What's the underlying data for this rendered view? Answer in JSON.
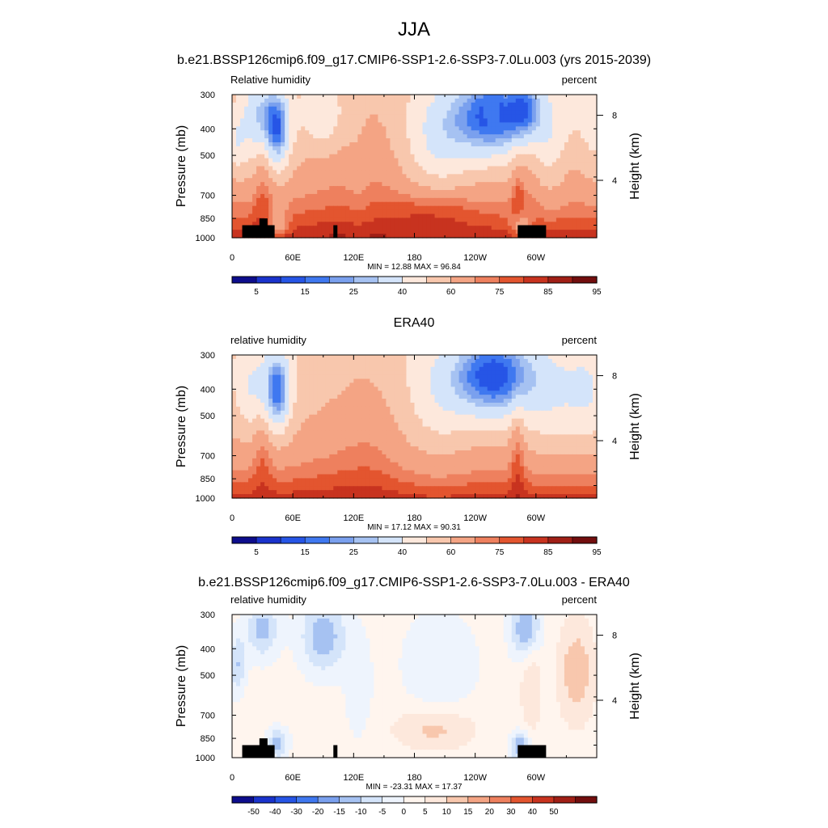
{
  "figure": {
    "title": "JJA",
    "subtitle": "b.e21.BSSP126cmip6.f09_g17.CMIP6-SSP1-2.6-SSP3-7.0Lu.003 (yrs 2015-2039)"
  },
  "colors": {
    "abs_scale": [
      "#0d0d8c",
      "#1a33cc",
      "#2655e6",
      "#3f78f0",
      "#7aa0ee",
      "#a6c2f2",
      "#d4e4fa",
      "#fde8dc",
      "#f8c7ad",
      "#f4a484",
      "#ee805e",
      "#e3552f",
      "#c8331f",
      "#a01f16",
      "#720e0e"
    ],
    "diff_scale": [
      "#0d0d8c",
      "#1a33cc",
      "#2655e6",
      "#3f78f0",
      "#7aa0ee",
      "#a6c2f2",
      "#d4e4fa",
      "#eef4fd",
      "#fff5ee",
      "#fde8dc",
      "#f8c7ad",
      "#f4a484",
      "#ee805e",
      "#e3552f",
      "#c8331f",
      "#a01f16",
      "#720e0e"
    ],
    "topography": "#000000"
  },
  "chart_data": [
    {
      "type": "heatmap",
      "panel_title": "",
      "left_label": "Relative humidity",
      "right_label": "percent",
      "xlabel": "",
      "ylabel": "Pressure (mb)",
      "ylabel_right": "Height (km)",
      "x_ticks": [
        "0",
        "60E",
        "120E",
        "180",
        "120W",
        "60W"
      ],
      "x_tick_lon": [
        0,
        60,
        120,
        180,
        240,
        300
      ],
      "xlim": [
        0,
        360
      ],
      "y_ticks": [
        "300",
        "400",
        "500",
        "700",
        "850",
        "1000"
      ],
      "y_tick_p": [
        300,
        400,
        500,
        700,
        850,
        1000
      ],
      "ylim": [
        300,
        1000
      ],
      "y_scale": "log",
      "right_ticks": [
        "8",
        "4"
      ],
      "right_tick_p": [
        357,
        617
      ],
      "stats": "MIN =  12.88  MAX =  96.84",
      "min": 12.88,
      "max": 96.84,
      "colorbar_labels": [
        "5",
        "15",
        "25",
        "40",
        "60",
        "75",
        "85",
        "95"
      ],
      "colorbar_label_positions": [
        1,
        3,
        5,
        7,
        9,
        11,
        13,
        15
      ],
      "field": "model",
      "topography": true
    },
    {
      "type": "heatmap",
      "panel_title": "ERA40",
      "left_label": "relative humidity",
      "right_label": "percent",
      "xlabel": "",
      "ylabel": "Pressure (mb)",
      "ylabel_right": "Height (km)",
      "x_ticks": [
        "0",
        "60E",
        "120E",
        "180",
        "120W",
        "60W"
      ],
      "x_tick_lon": [
        0,
        60,
        120,
        180,
        240,
        300
      ],
      "xlim": [
        0,
        360
      ],
      "y_ticks": [
        "300",
        "400",
        "500",
        "700",
        "850",
        "1000"
      ],
      "y_tick_p": [
        300,
        400,
        500,
        700,
        850,
        1000
      ],
      "ylim": [
        300,
        1000
      ],
      "y_scale": "log",
      "right_ticks": [
        "8",
        "4"
      ],
      "right_tick_p": [
        357,
        617
      ],
      "stats": "MIN =  17.12  MAX =  90.31",
      "min": 17.12,
      "max": 90.31,
      "colorbar_labels": [
        "5",
        "15",
        "25",
        "40",
        "60",
        "75",
        "85",
        "95"
      ],
      "colorbar_label_positions": [
        1,
        3,
        5,
        7,
        9,
        11,
        13,
        15
      ],
      "field": "obs",
      "topography": false
    },
    {
      "type": "heatmap",
      "panel_title": "b.e21.BSSP126cmip6.f09_g17.CMIP6-SSP1-2.6-SSP3-7.0Lu.003 - ERA40",
      "left_label": "relative humidity",
      "right_label": "percent",
      "xlabel": "",
      "ylabel": "Pressure (mb)",
      "ylabel_right": "Height (km)",
      "x_ticks": [
        "0",
        "60E",
        "120E",
        "180",
        "120W",
        "60W"
      ],
      "x_tick_lon": [
        0,
        60,
        120,
        180,
        240,
        300
      ],
      "xlim": [
        0,
        360
      ],
      "y_ticks": [
        "300",
        "400",
        "500",
        "700",
        "850",
        "1000"
      ],
      "y_tick_p": [
        300,
        400,
        500,
        700,
        850,
        1000
      ],
      "ylim": [
        300,
        1000
      ],
      "y_scale": "log",
      "right_ticks": [
        "8",
        "4"
      ],
      "right_tick_p": [
        357,
        617
      ],
      "stats": "MIN = -23.31  MAX =  17.37",
      "min": -23.31,
      "max": 17.37,
      "colorbar_labels": [
        "-50",
        "-40",
        "-30",
        "-20",
        "-15",
        "-10",
        "-5",
        "0",
        "5",
        "10",
        "15",
        "20",
        "30",
        "40",
        "50"
      ],
      "colorbar_label_positions": [
        1,
        2,
        3,
        4,
        5,
        6,
        7,
        8,
        9,
        10,
        11,
        12,
        13,
        14,
        15
      ],
      "field": "diff",
      "topography": true
    }
  ]
}
